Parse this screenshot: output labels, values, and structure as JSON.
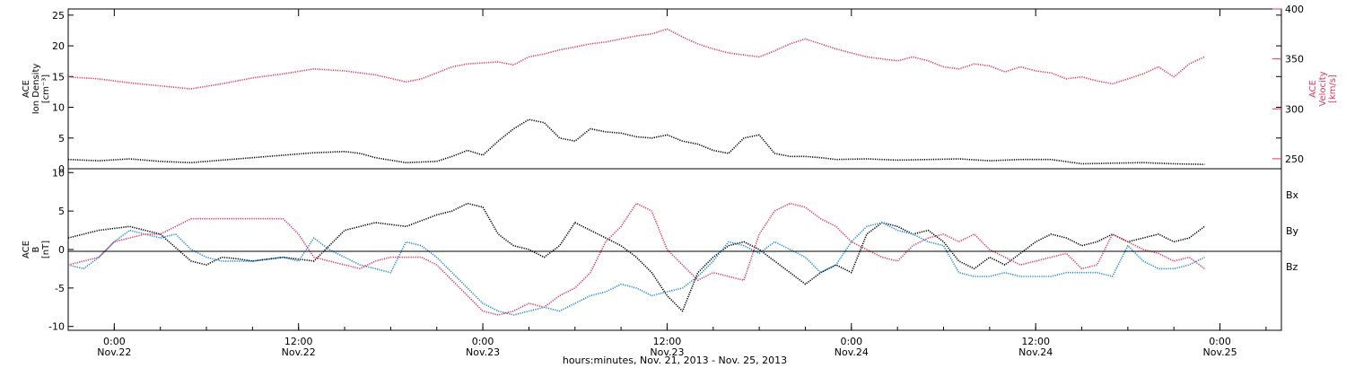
{
  "colors": {
    "black": "#000000",
    "pink": "#e8365f",
    "blue": "#1f8ae0"
  },
  "xaxis": {
    "title": "hours:minutes, Nov. 21, 2013 - Nov. 25, 2013",
    "tick_hours": [
      3,
      15,
      27,
      39,
      51,
      63,
      75
    ],
    "tick_time_labels": [
      "0:00",
      "12:00",
      "0:00",
      "12:00",
      "0:00",
      "12:00",
      "0:00"
    ],
    "tick_date_labels": [
      "Nov.22",
      "Nov.22",
      "Nov.23",
      "Nov.23",
      "Nov.24",
      "Nov.24",
      "Nov.25"
    ]
  },
  "top_panel": {
    "left_label": {
      "line1": "ACE",
      "line2": "Ion Density",
      "line3": "[cm⁻³]"
    },
    "right_label": {
      "line1": "ACE",
      "line2": "Velocity",
      "line3": "[km/s]"
    },
    "left_ticks": [
      "0",
      "5",
      "10",
      "15",
      "20",
      "25"
    ],
    "right_ticks": [
      "250",
      "300",
      "350",
      "400"
    ]
  },
  "bottom_panel": {
    "left_label": {
      "line1": "ACE",
      "line2": "B",
      "line3": "[nT]"
    },
    "left_ticks": [
      "-10",
      "-5",
      "0",
      "5",
      "10"
    ],
    "legend": [
      "Bx",
      "By",
      "Bz"
    ]
  },
  "chart_data": [
    {
      "type": "scatter",
      "title": "",
      "xlabel": "hours:minutes, Nov. 21, 2013 - Nov. 25, 2013",
      "x_unit": "hours since 2013-11-21 21:00",
      "xlim": [
        0,
        79
      ],
      "ylabel": "ACE Ion Density [cm^-3]",
      "ylim": [
        0,
        26
      ],
      "y2label": "ACE Velocity [km/s]",
      "y2lim": [
        240,
        400
      ],
      "series": [
        {
          "name": "Ion Density",
          "axis": "left",
          "color": "#000000",
          "x": [
            0,
            2,
            4,
            6,
            8,
            10,
            12,
            14,
            16,
            18,
            19,
            20,
            22,
            24,
            25,
            26,
            27,
            28,
            29,
            30,
            31,
            32,
            33,
            34,
            35,
            36,
            37,
            38,
            39,
            40,
            41,
            42,
            43,
            44,
            45,
            46,
            47,
            48,
            49,
            50,
            52,
            54,
            56,
            58,
            60,
            62,
            64,
            66,
            68,
            70,
            72,
            74
          ],
          "y": [
            1.5,
            1.3,
            1.6,
            1.2,
            1.0,
            1.4,
            1.8,
            2.2,
            2.6,
            2.8,
            2.5,
            1.8,
            1.0,
            1.2,
            2.0,
            3.0,
            2.2,
            4.5,
            6.5,
            8.0,
            7.5,
            5.0,
            4.5,
            6.5,
            6.0,
            5.8,
            5.2,
            5.0,
            5.5,
            4.5,
            4.0,
            3.0,
            2.5,
            5.0,
            5.5,
            2.5,
            2.0,
            2.0,
            1.8,
            1.5,
            1.6,
            1.4,
            1.5,
            1.6,
            1.3,
            1.5,
            1.5,
            0.8,
            0.9,
            1.0,
            0.8,
            0.7
          ]
        },
        {
          "name": "Velocity",
          "axis": "right",
          "color": "#e8365f",
          "x": [
            0,
            2,
            4,
            6,
            8,
            10,
            12,
            14,
            16,
            18,
            20,
            22,
            23,
            24,
            25,
            26,
            27,
            28,
            29,
            30,
            31,
            32,
            33,
            34,
            35,
            36,
            37,
            38,
            39,
            40,
            41,
            42,
            43,
            44,
            45,
            46,
            47,
            48,
            49,
            50,
            51,
            52,
            53,
            54,
            55,
            56,
            57,
            58,
            59,
            60,
            61,
            62,
            63,
            64,
            65,
            66,
            67,
            68,
            69,
            70,
            71,
            72,
            73,
            74
          ],
          "y": [
            332,
            330,
            326,
            323,
            320,
            325,
            331,
            335,
            340,
            338,
            334,
            327,
            330,
            336,
            342,
            345,
            346,
            347,
            344,
            352,
            355,
            359,
            362,
            365,
            367,
            370,
            373,
            375,
            380,
            372,
            365,
            360,
            356,
            354,
            352,
            358,
            365,
            370,
            365,
            360,
            356,
            352,
            350,
            348,
            352,
            348,
            342,
            340,
            345,
            343,
            337,
            342,
            338,
            336,
            330,
            332,
            328,
            325,
            330,
            335,
            342,
            332,
            345,
            352
          ]
        }
      ]
    },
    {
      "type": "scatter",
      "title": "",
      "xlabel": "hours:minutes, Nov. 21, 2013 - Nov. 25, 2013",
      "x_unit": "hours since 2013-11-21 21:00",
      "xlim": [
        0,
        79
      ],
      "ylabel": "ACE B [nT]",
      "ylim": [
        -10.5,
        10.5
      ],
      "series": [
        {
          "name": "Bx",
          "color": "#000000",
          "x": [
            0,
            2,
            4,
            6,
            8,
            9,
            10,
            11,
            12,
            14,
            16,
            18,
            20,
            22,
            24,
            25,
            26,
            27,
            28,
            29,
            30,
            31,
            32,
            33,
            34,
            35,
            36,
            37,
            38,
            39,
            40,
            41,
            42,
            43,
            44,
            45,
            46,
            47,
            48,
            49,
            50,
            51,
            52,
            53,
            54,
            55,
            56,
            57,
            58,
            59,
            60,
            61,
            62,
            63,
            64,
            65,
            66,
            67,
            68,
            69,
            70,
            71,
            72,
            73,
            74
          ],
          "y": [
            1.5,
            2.5,
            3.0,
            2.0,
            -1.5,
            -2.0,
            -1.0,
            -1.2,
            -1.5,
            -1.0,
            -1.5,
            2.5,
            3.5,
            3.0,
            4.5,
            5.0,
            6.0,
            5.5,
            2.0,
            0.5,
            0.0,
            -1.0,
            0.5,
            3.5,
            2.5,
            1.5,
            0.5,
            -1.0,
            -3.0,
            -6.0,
            -8.0,
            -3.0,
            -1.0,
            0.5,
            1.0,
            0.0,
            -1.5,
            -3.0,
            -4.5,
            -3.0,
            -2.0,
            -3.0,
            2.0,
            3.5,
            3.0,
            2.0,
            2.5,
            1.0,
            -1.5,
            -2.5,
            -1.0,
            -2.0,
            -0.5,
            1.0,
            2.0,
            1.5,
            0.5,
            1.0,
            2.0,
            1.0,
            1.5,
            2.0,
            1.0,
            1.5,
            3.0
          ]
        },
        {
          "name": "By",
          "color": "#1f8ae0",
          "x": [
            0,
            1,
            2,
            3,
            4,
            5,
            6,
            7,
            8,
            9,
            10,
            12,
            14,
            15,
            16,
            17,
            18,
            19,
            20,
            21,
            22,
            23,
            24,
            25,
            26,
            27,
            28,
            29,
            30,
            31,
            32,
            33,
            34,
            35,
            36,
            37,
            38,
            39,
            40,
            41,
            42,
            43,
            44,
            45,
            46,
            47,
            48,
            49,
            50,
            51,
            52,
            53,
            54,
            55,
            56,
            57,
            58,
            59,
            60,
            61,
            62,
            63,
            64,
            65,
            66,
            67,
            68,
            69,
            70,
            71,
            72,
            73,
            74
          ],
          "y": [
            -2.0,
            -2.5,
            -1.0,
            1.0,
            2.5,
            2.0,
            1.5,
            2.0,
            0.0,
            -1.0,
            -1.5,
            -1.5,
            -1.0,
            -1.5,
            1.5,
            0.0,
            -1.0,
            -2.0,
            -2.5,
            -3.0,
            1.0,
            0.5,
            -1.0,
            -3.0,
            -5.0,
            -7.0,
            -8.0,
            -8.5,
            -8.0,
            -7.5,
            -8.0,
            -7.0,
            -6.0,
            -5.5,
            -4.5,
            -5.0,
            -6.0,
            -5.5,
            -5.0,
            -3.5,
            -1.5,
            1.0,
            0.5,
            -0.5,
            1.0,
            0.0,
            -1.0,
            -3.0,
            -2.0,
            1.0,
            3.0,
            3.5,
            2.5,
            2.0,
            1.0,
            0.5,
            -3.0,
            -3.5,
            -3.5,
            -3.0,
            -3.5,
            -3.5,
            -3.5,
            -3.0,
            -3.0,
            -3.0,
            -3.5,
            0.5,
            -1.5,
            -2.5,
            -2.5,
            -2.0,
            -1.0
          ]
        },
        {
          "name": "Bz",
          "color": "#e8365f",
          "x": [
            0,
            1,
            2,
            3,
            4,
            5,
            6,
            7,
            8,
            9,
            10,
            11,
            12,
            13,
            14,
            15,
            16,
            17,
            18,
            19,
            20,
            21,
            22,
            23,
            24,
            25,
            26,
            27,
            28,
            29,
            30,
            31,
            32,
            33,
            34,
            35,
            36,
            37,
            38,
            39,
            40,
            41,
            42,
            43,
            44,
            45,
            46,
            47,
            48,
            49,
            50,
            51,
            52,
            53,
            54,
            55,
            56,
            57,
            58,
            59,
            60,
            61,
            62,
            63,
            64,
            65,
            66,
            67,
            68,
            69,
            70,
            71,
            72,
            73,
            74
          ],
          "y": [
            -2.0,
            -1.5,
            -1.0,
            1.0,
            1.5,
            2.0,
            2.0,
            3.0,
            4.0,
            4.0,
            4.0,
            4.0,
            4.0,
            4.0,
            4.0,
            2.0,
            -1.0,
            -1.5,
            -2.0,
            -2.5,
            -1.5,
            -1.0,
            -1.0,
            -1.0,
            -2.0,
            -4.0,
            -6.0,
            -8.0,
            -8.5,
            -8.0,
            -7.0,
            -7.5,
            -6.0,
            -5.0,
            -3.0,
            1.0,
            3.0,
            6.0,
            5.0,
            0.0,
            -2.0,
            -4.0,
            -3.0,
            -3.5,
            -4.0,
            2.0,
            5.0,
            6.0,
            5.5,
            4.0,
            3.0,
            1.0,
            0.0,
            -1.0,
            -1.5,
            0.5,
            1.5,
            2.0,
            1.0,
            2.0,
            0.0,
            -1.0,
            -2.0,
            -1.5,
            -1.0,
            -0.5,
            -2.5,
            -2.0,
            2.0,
            1.0,
            0.0,
            -0.5,
            -1.5,
            -1.0,
            -2.5
          ]
        }
      ],
      "zero_line": true
    }
  ]
}
